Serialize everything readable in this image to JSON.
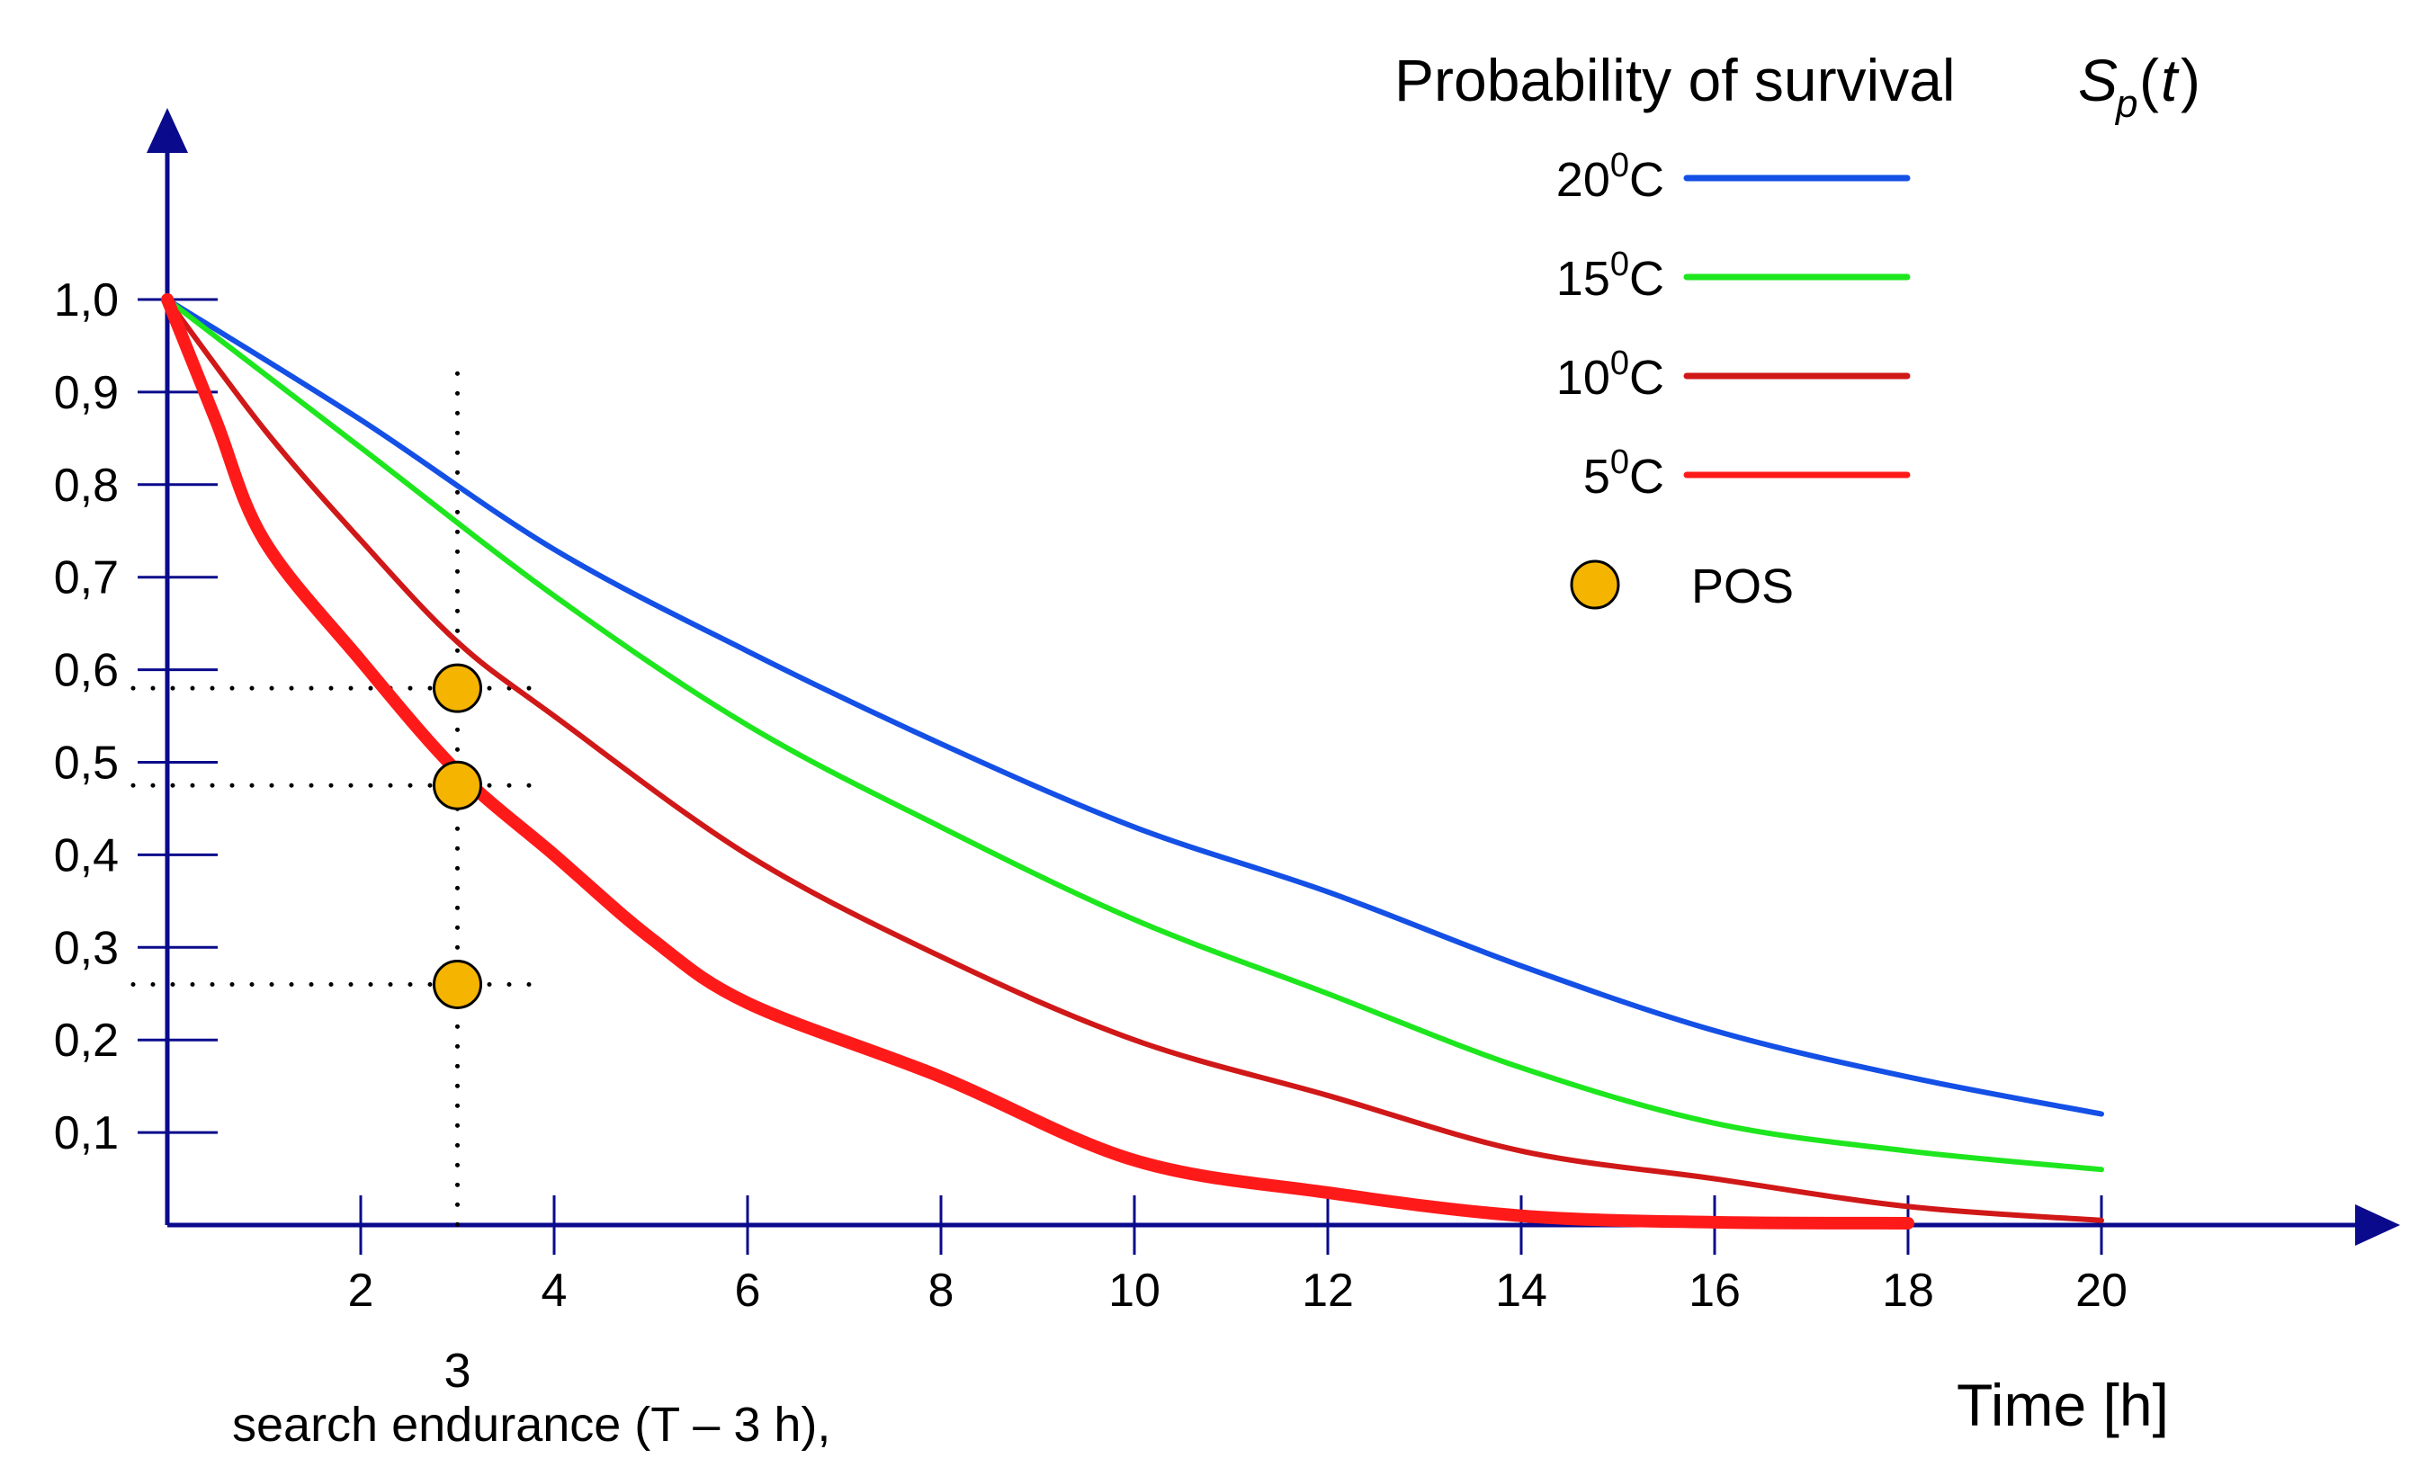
{
  "chart_data": {
    "type": "line",
    "title": "Probability of survival",
    "title_symbol": {
      "main": "S",
      "sub": "p",
      "arg": "t"
    },
    "xlabel": "Time [h]",
    "ylabel": "",
    "xlim": [
      0,
      22.5
    ],
    "ylim": [
      0,
      1.12
    ],
    "x_ticks": [
      2,
      4,
      6,
      8,
      10,
      12,
      14,
      16,
      18,
      20
    ],
    "x_tick_labels": [
      "2",
      "4",
      "6",
      "8",
      "10",
      "12",
      "14",
      "16",
      "18",
      "20"
    ],
    "y_ticks": [
      0.1,
      0.2,
      0.3,
      0.4,
      0.5,
      0.6,
      0.7,
      0.8,
      0.9,
      1.0
    ],
    "y_tick_labels": [
      "0,1",
      "0,2",
      "0,3",
      "0,4",
      "0,5",
      "0,6",
      "0,7",
      "0,8",
      "0,9",
      "1,0"
    ],
    "series": [
      {
        "name": "20°C",
        "label_base": "20",
        "label_sup": "0",
        "label_unit": "C",
        "color": "#1450e6",
        "emphasis": false,
        "x": [
          0,
          2,
          4,
          6,
          8,
          10,
          12,
          14,
          16,
          18,
          20
        ],
        "y": [
          1.0,
          0.87,
          0.73,
          0.62,
          0.52,
          0.43,
          0.36,
          0.28,
          0.21,
          0.16,
          0.12
        ]
      },
      {
        "name": "15°C",
        "label_base": "15",
        "label_sup": "0",
        "label_unit": "C",
        "color": "#1ee61e",
        "emphasis": false,
        "x": [
          0,
          2,
          4,
          6,
          8,
          10,
          12,
          14,
          16,
          18,
          20
        ],
        "y": [
          1.0,
          0.84,
          0.68,
          0.54,
          0.43,
          0.33,
          0.25,
          0.17,
          0.11,
          0.08,
          0.06
        ]
      },
      {
        "name": "10°C",
        "label_base": "10",
        "label_sup": "0",
        "label_unit": "C",
        "color": "#d01818",
        "emphasis": false,
        "x": [
          0,
          1,
          2,
          3,
          4,
          6,
          8,
          10,
          12,
          14,
          16,
          18,
          20
        ],
        "y": [
          1.0,
          0.86,
          0.74,
          0.63,
          0.55,
          0.4,
          0.29,
          0.2,
          0.14,
          0.08,
          0.05,
          0.02,
          0.005
        ]
      },
      {
        "name": "5°C",
        "label_base": "5",
        "label_sup": "0",
        "label_unit": "C",
        "color": "#ff1a1a",
        "emphasis": true,
        "x": [
          0,
          0.5,
          1,
          2,
          3,
          4,
          5,
          6,
          8,
          10,
          12,
          14,
          16,
          18
        ],
        "y": [
          1.0,
          0.87,
          0.74,
          0.61,
          0.49,
          0.4,
          0.31,
          0.24,
          0.16,
          0.07,
          0.035,
          0.01,
          0.003,
          0.002
        ]
      }
    ],
    "pos_points": {
      "name": "POS",
      "color": "#f5b400",
      "x": 3,
      "y": [
        0.58,
        0.475,
        0.26
      ]
    },
    "annotations": {
      "marker_x_label": "3",
      "caption": "search endurance (T – 3 h),"
    },
    "legend_position": "top-right",
    "axis_color": "#0a0a8c"
  }
}
